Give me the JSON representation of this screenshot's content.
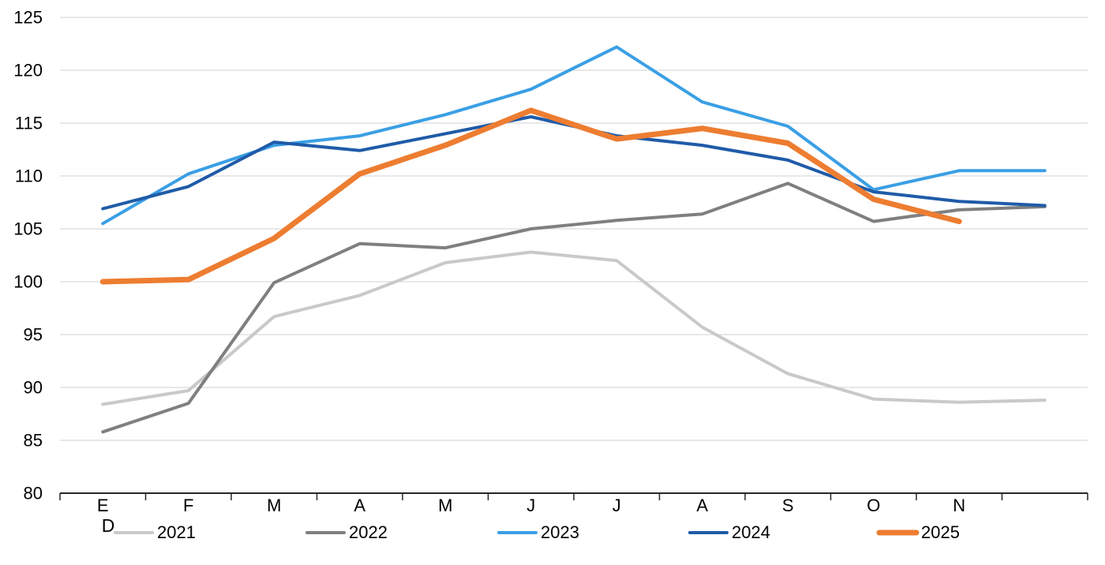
{
  "chart_data": {
    "type": "line",
    "title": "",
    "xlabel": "",
    "ylabel": "",
    "categories": [
      "E",
      "F",
      "M",
      "A",
      "M",
      "J",
      "J",
      "A",
      "S",
      "O",
      "N",
      ""
    ],
    "x_axis_secondary_label": "D",
    "y_ticks": [
      80,
      85,
      90,
      95,
      100,
      105,
      110,
      115,
      120,
      125
    ],
    "ylim": [
      80,
      125
    ],
    "grid": "horizontal-only",
    "legend_position": "bottom",
    "colors": {
      "axis": "#262626",
      "gridline": "#D9D9D9",
      "text": "#000000",
      "background": "#FFFFFF"
    },
    "series": [
      {
        "name": "2021",
        "color": "#C9C9C9",
        "stroke_width": 4,
        "values": [
          88.4,
          89.7,
          96.7,
          98.7,
          101.8,
          102.8,
          102.0,
          95.7,
          91.3,
          88.9,
          88.6,
          88.8
        ]
      },
      {
        "name": "2022",
        "color": "#7F7F7F",
        "stroke_width": 4,
        "values": [
          85.8,
          88.5,
          99.9,
          103.6,
          103.2,
          105.0,
          105.8,
          106.4,
          109.3,
          105.7,
          106.8,
          107.1
        ]
      },
      {
        "name": "2023",
        "color": "#3A9FE5",
        "stroke_width": 4,
        "values": [
          105.5,
          110.2,
          112.9,
          113.8,
          115.8,
          118.2,
          122.2,
          117.0,
          114.7,
          108.7,
          110.5,
          110.5
        ]
      },
      {
        "name": "2024",
        "color": "#1F5BA8",
        "stroke_width": 4,
        "values": [
          106.9,
          109.0,
          113.2,
          112.4,
          114.0,
          115.6,
          113.8,
          112.9,
          111.5,
          108.5,
          107.6,
          107.2
        ]
      },
      {
        "name": "2025",
        "color": "#ED7D31",
        "stroke_width": 7,
        "values": [
          100.0,
          100.2,
          104.1,
          110.2,
          112.9,
          116.2,
          113.5,
          114.5,
          113.1,
          107.8,
          105.7
        ]
      }
    ]
  }
}
